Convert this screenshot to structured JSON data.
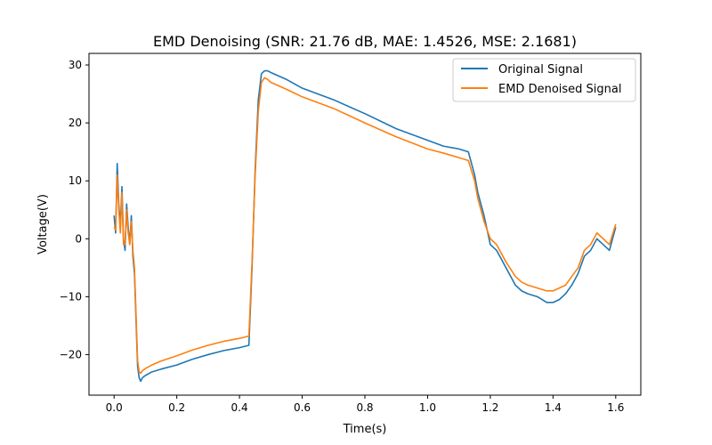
{
  "chart_data": {
    "type": "line",
    "title": "EMD Denoising (SNR: 21.76 dB, MAE: 1.4526, MSE: 2.1681)",
    "xlabel": "Time(s)",
    "ylabel": "Voltage(V)",
    "xlim": [
      -0.08,
      1.68
    ],
    "ylim": [
      -27,
      32
    ],
    "xticks": [
      0.0,
      0.2,
      0.4,
      0.6,
      0.8,
      1.0,
      1.2,
      1.4,
      1.6
    ],
    "xtick_labels": [
      "0.0",
      "0.2",
      "0.4",
      "0.6",
      "0.8",
      "1.0",
      "1.2",
      "1.4",
      "1.6"
    ],
    "yticks": [
      -20,
      -10,
      0,
      10,
      20,
      30
    ],
    "ytick_labels": [
      "−20",
      "−10",
      "0",
      "10",
      "20",
      "30"
    ],
    "grid": false,
    "legend_position": "top-right",
    "series": [
      {
        "name": "Original Signal",
        "color": "#1f77b4",
        "x": [
          0.0,
          0.005,
          0.01,
          0.015,
          0.02,
          0.025,
          0.03,
          0.035,
          0.04,
          0.045,
          0.05,
          0.055,
          0.06,
          0.065,
          0.07,
          0.075,
          0.08,
          0.085,
          0.09,
          0.1,
          0.12,
          0.15,
          0.2,
          0.25,
          0.3,
          0.35,
          0.4,
          0.43,
          0.44,
          0.45,
          0.46,
          0.47,
          0.48,
          0.49,
          0.5,
          0.55,
          0.6,
          0.7,
          0.8,
          0.9,
          1.0,
          1.05,
          1.1,
          1.13,
          1.15,
          1.16,
          1.18,
          1.2,
          1.22,
          1.25,
          1.28,
          1.3,
          1.32,
          1.35,
          1.38,
          1.4,
          1.42,
          1.44,
          1.46,
          1.48,
          1.5,
          1.52,
          1.54,
          1.56,
          1.58,
          1.6
        ],
        "y": [
          4,
          1,
          13,
          6,
          2,
          9,
          0,
          -2,
          6,
          2,
          -1,
          4,
          -3,
          -6,
          -14,
          -22,
          -24,
          -24.6,
          -24,
          -23.6,
          -23,
          -22.5,
          -21.8,
          -20.8,
          -20,
          -19.3,
          -18.8,
          -18.4,
          -5,
          12,
          24,
          28.5,
          29,
          29,
          28.7,
          27.5,
          26,
          24,
          21.6,
          19,
          17,
          16,
          15.5,
          15,
          11,
          8,
          4,
          -1,
          -2,
          -5,
          -8,
          -9,
          -9.5,
          -10,
          -11,
          -11,
          -10.5,
          -9.5,
          -8,
          -6,
          -3,
          -2,
          0,
          -1,
          -2,
          2
        ]
      },
      {
        "name": "EMD Denoised Signal",
        "color": "#ff7f0e",
        "x": [
          0.0,
          0.005,
          0.01,
          0.015,
          0.02,
          0.025,
          0.03,
          0.035,
          0.04,
          0.045,
          0.05,
          0.055,
          0.06,
          0.065,
          0.07,
          0.075,
          0.08,
          0.085,
          0.09,
          0.1,
          0.12,
          0.15,
          0.2,
          0.25,
          0.3,
          0.35,
          0.4,
          0.43,
          0.44,
          0.45,
          0.46,
          0.47,
          0.48,
          0.49,
          0.5,
          0.55,
          0.6,
          0.7,
          0.8,
          0.9,
          1.0,
          1.05,
          1.1,
          1.13,
          1.15,
          1.16,
          1.18,
          1.2,
          1.22,
          1.25,
          1.28,
          1.3,
          1.32,
          1.35,
          1.38,
          1.4,
          1.42,
          1.44,
          1.46,
          1.48,
          1.5,
          1.52,
          1.54,
          1.56,
          1.58,
          1.6
        ],
        "y": [
          2,
          1.5,
          11,
          5,
          1,
          8,
          -1,
          -1,
          5,
          1,
          -1,
          3,
          -2,
          -5,
          -13,
          -21,
          -23,
          -23.2,
          -22.8,
          -22.4,
          -21.8,
          -21.1,
          -20.2,
          -19.2,
          -18.4,
          -17.7,
          -17.2,
          -16.8,
          -4,
          11,
          22,
          27,
          27.8,
          27.5,
          27,
          25.8,
          24.5,
          22.5,
          20,
          17.6,
          15.5,
          14.8,
          14,
          13.5,
          10,
          7,
          3,
          0,
          -1,
          -4,
          -6.5,
          -7.5,
          -8,
          -8.5,
          -9,
          -9,
          -8.5,
          -8,
          -6.5,
          -5,
          -2,
          -1,
          1,
          0,
          -1,
          2.5
        ]
      }
    ]
  }
}
